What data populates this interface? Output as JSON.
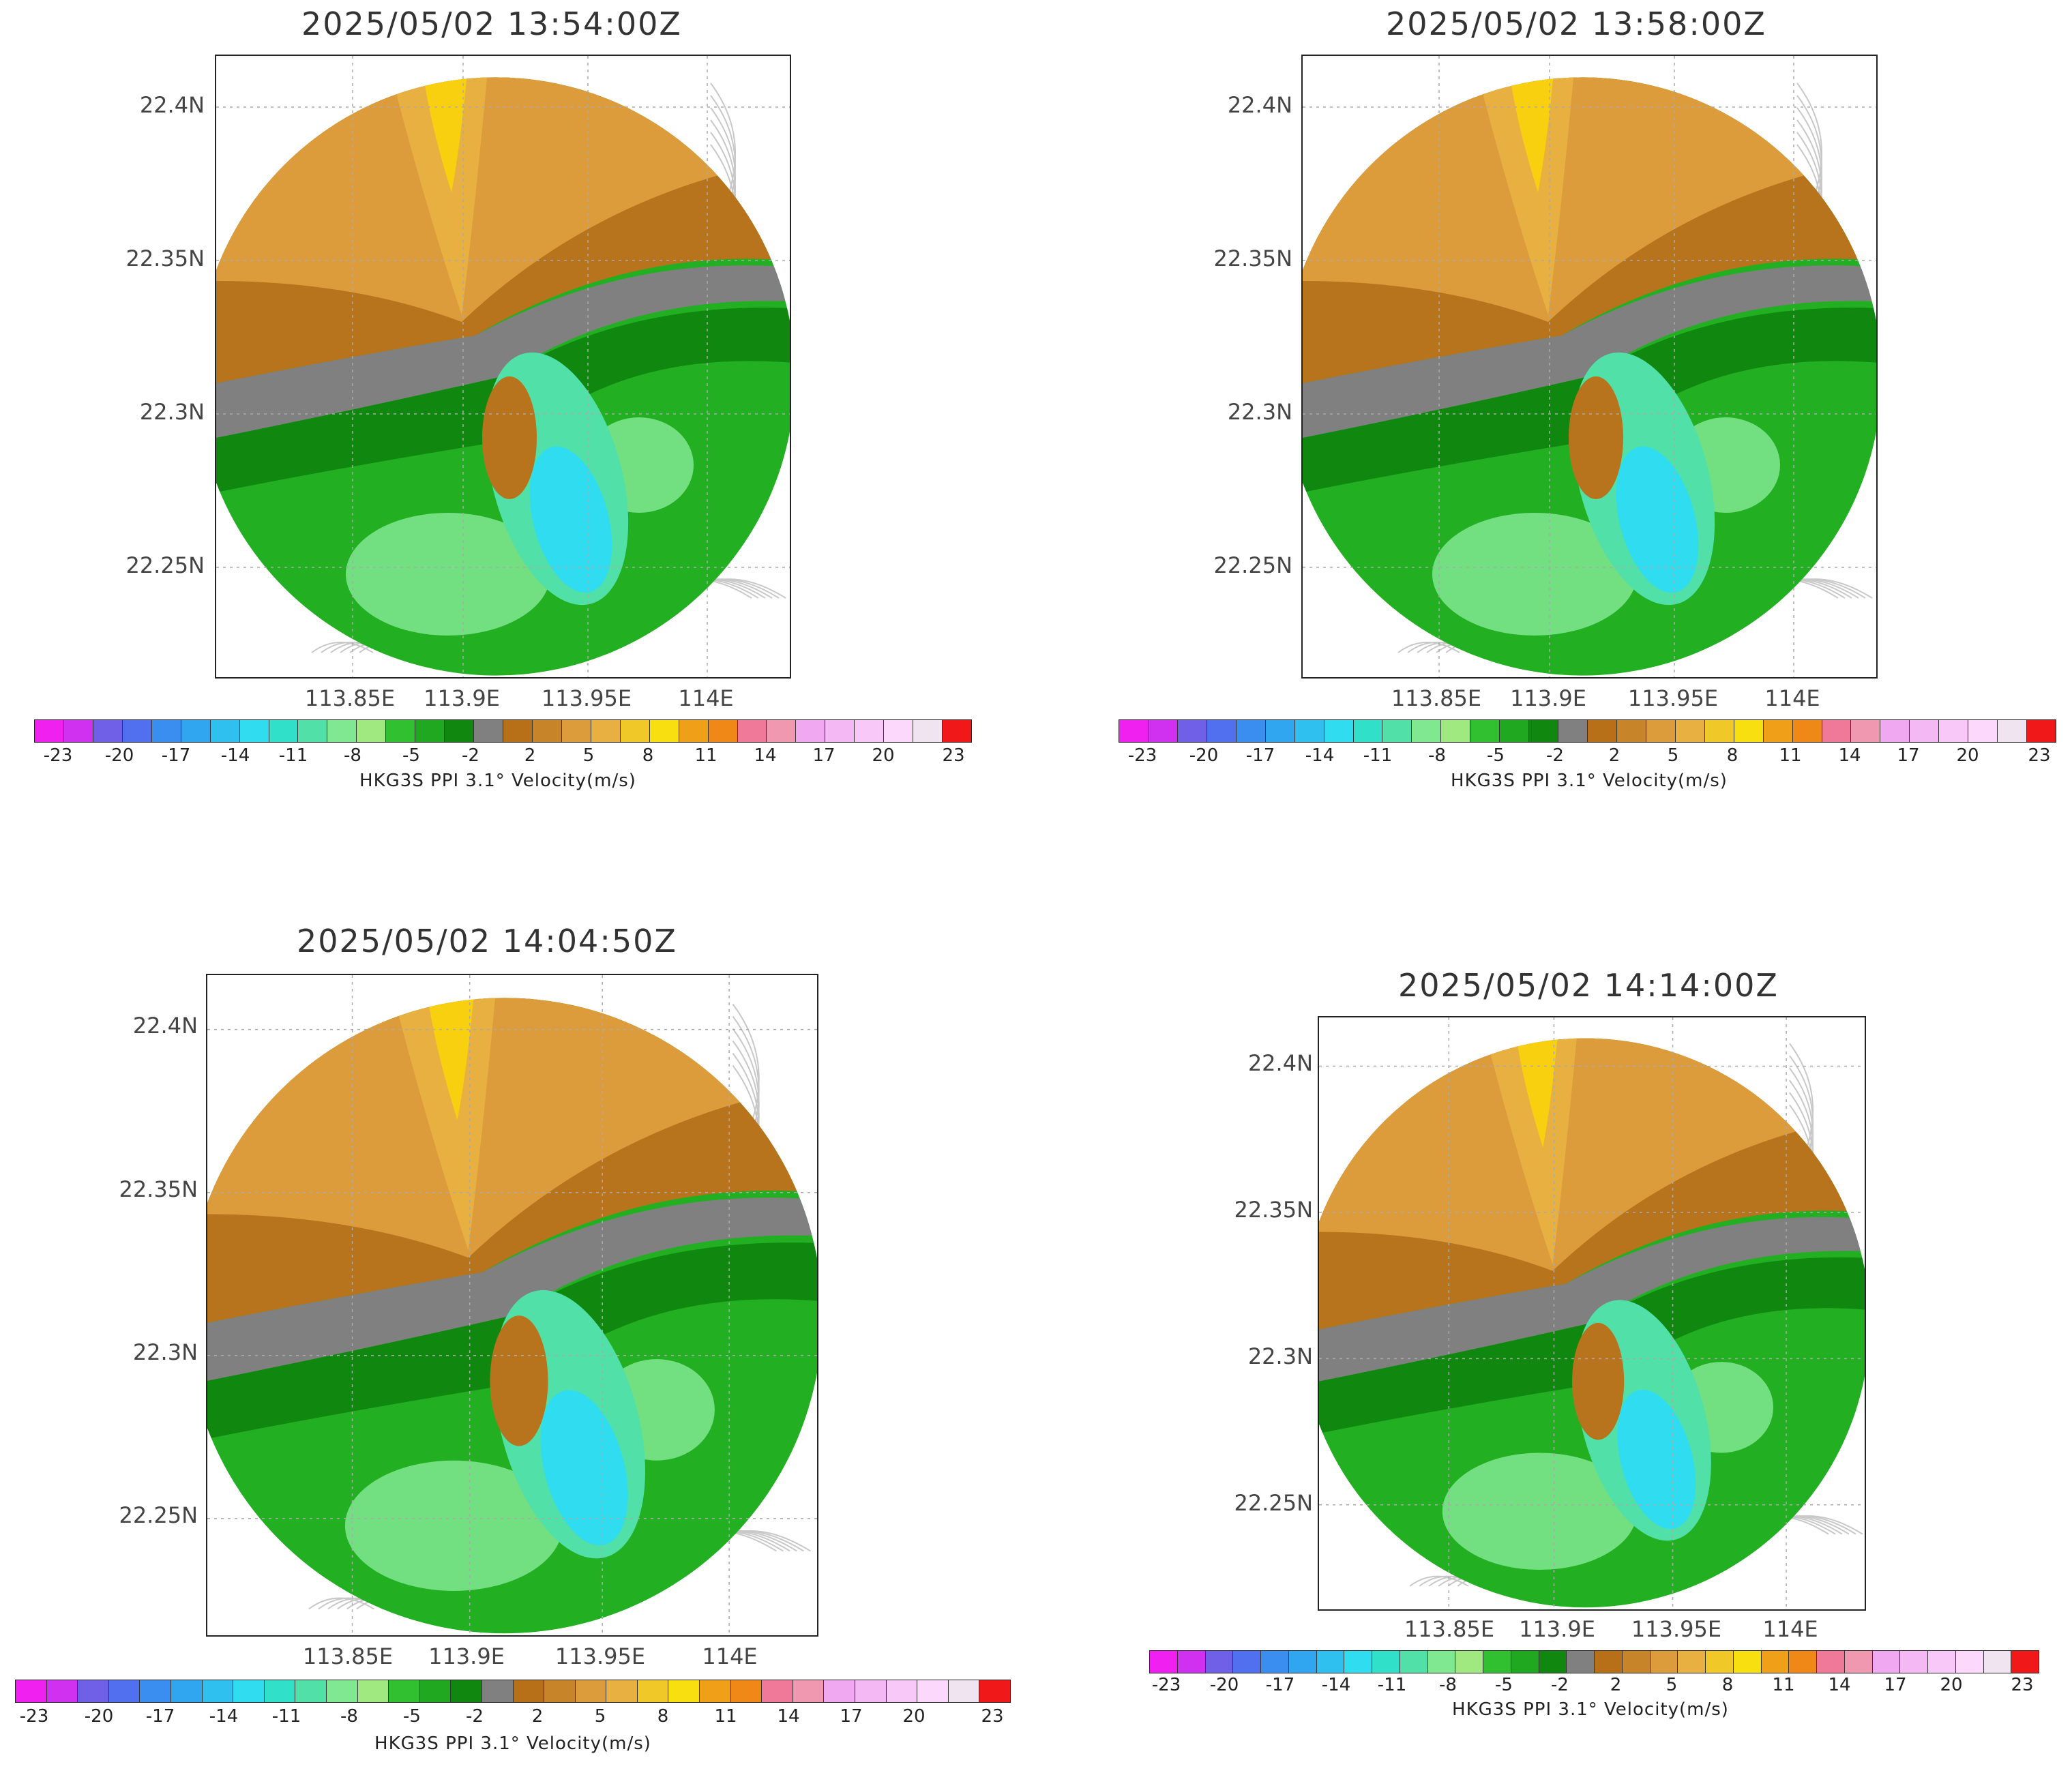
{
  "panels": [
    {
      "title": "2025/05/02  13:54:00Z",
      "y_ticks": [
        "22.4N",
        "22.35N",
        "22.3N",
        "22.25N"
      ],
      "x_ticks": [
        "113.85E",
        "113.9E",
        "113.95E",
        "114E"
      ],
      "colorbar_labels": [
        "-23",
        "-20",
        "-17",
        "-14",
        "-11",
        "-8",
        "-5",
        "-2",
        "2",
        "5",
        "8",
        "11",
        "14",
        "17",
        "20",
        "23"
      ],
      "colorbar_title": "HKG3S  PPI  3.1° Velocity(m/s)"
    },
    {
      "title": "2025/05/02  13:58:00Z",
      "y_ticks": [
        "22.4N",
        "22.35N",
        "22.3N",
        "22.25N"
      ],
      "x_ticks": [
        "113.85E",
        "113.9E",
        "113.95E",
        "114E"
      ],
      "colorbar_labels": [
        "-23",
        "-20",
        "-17",
        "-14",
        "-11",
        "-8",
        "-5",
        "-2",
        "2",
        "5",
        "8",
        "11",
        "14",
        "17",
        "20",
        "23"
      ],
      "colorbar_title": "HKG3S  PPI  3.1° Velocity(m/s)"
    },
    {
      "title": "2025/05/02  14:04:50Z",
      "y_ticks": [
        "22.4N",
        "22.35N",
        "22.3N",
        "22.25N"
      ],
      "x_ticks": [
        "113.85E",
        "113.9E",
        "113.95E",
        "114E"
      ],
      "colorbar_labels": [
        "-23",
        "-20",
        "-17",
        "-14",
        "-11",
        "-8",
        "-5",
        "-2",
        "2",
        "5",
        "8",
        "11",
        "14",
        "17",
        "20",
        "23"
      ],
      "colorbar_title": "HKG3S  PPI  3.1° Velocity(m/s)"
    },
    {
      "title": "2025/05/02  14:14:00Z",
      "y_ticks": [
        "22.4N",
        "22.35N",
        "22.3N",
        "22.25N"
      ],
      "x_ticks": [
        "113.85E",
        "113.9E",
        "113.95E",
        "114E"
      ],
      "colorbar_labels": [
        "-23",
        "-20",
        "-17",
        "-14",
        "-11",
        "-8",
        "-5",
        "-2",
        "2",
        "5",
        "8",
        "11",
        "14",
        "17",
        "20",
        "23"
      ],
      "colorbar_title": "HKG3S  PPI  3.1° Velocity(m/s)"
    }
  ],
  "colorbar_colors": [
    "#f020f0",
    "#d030f0",
    "#7060e8",
    "#5070f0",
    "#3a8ef0",
    "#30a6f0",
    "#30c0f0",
    "#30dcf0",
    "#30e0c8",
    "#50e0a8",
    "#80e890",
    "#a0e880",
    "#30c030",
    "#20a820",
    "#108810",
    "#808080",
    "#b87018",
    "#c88428",
    "#dc9c3c",
    "#e8b040",
    "#f0c828",
    "#f8e010",
    "#f0a018",
    "#f08818",
    "#f07898",
    "#f098b0",
    "#f0a8f0",
    "#f4b8f4",
    "#f8c8f8",
    "#fcd8fc",
    "#f0e4f0",
    "#f01818"
  ]
}
